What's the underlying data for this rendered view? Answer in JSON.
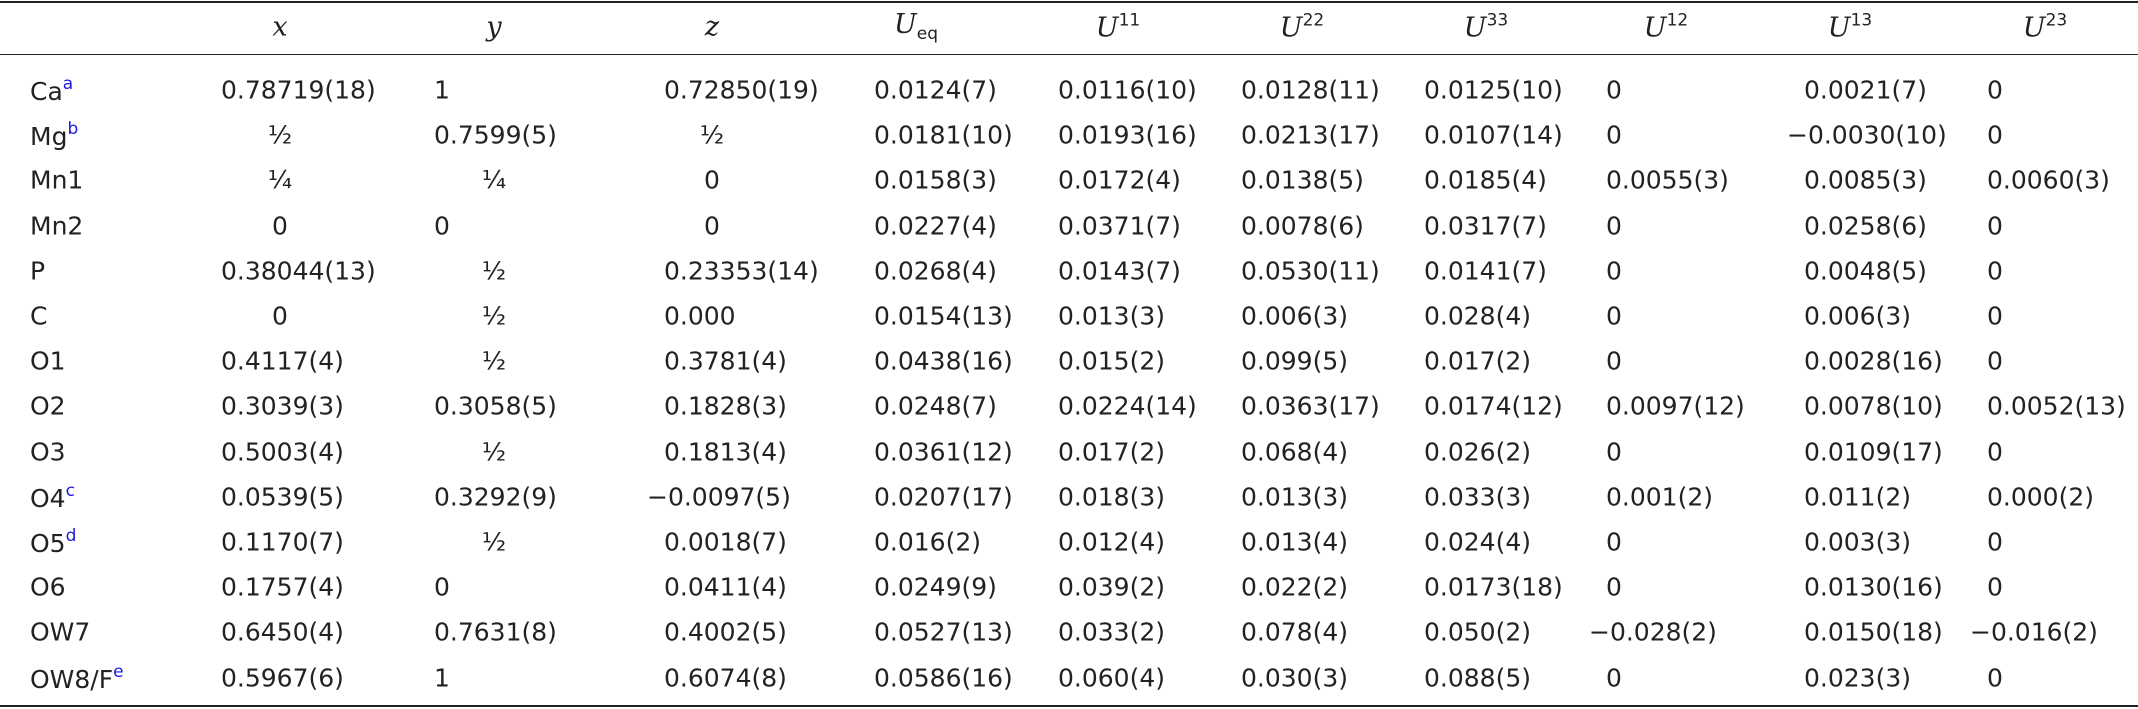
{
  "table": {
    "header": [
      {
        "symbol": "x"
      },
      {
        "symbol": "y"
      },
      {
        "symbol": "z"
      },
      {
        "symbol": "U",
        "sub": "eq"
      },
      {
        "symbol": "U",
        "sup": "11"
      },
      {
        "symbol": "U",
        "sup": "22"
      },
      {
        "symbol": "U",
        "sup": "33"
      },
      {
        "symbol": "U",
        "sup": "12"
      },
      {
        "symbol": "U",
        "sup": "13"
      },
      {
        "symbol": "U",
        "sup": "23"
      }
    ],
    "rows": [
      {
        "atom": "Ca",
        "note": "a",
        "cells": [
          "0.78719(18)",
          "1",
          "0.72850(19)",
          "0.0124(7)",
          "0.0116(10)",
          "0.0128(11)",
          "0.0125(10)",
          "0",
          "0.0021(7)",
          "0"
        ]
      },
      {
        "atom": "Mg",
        "note": "b",
        "cells": [
          "½",
          "0.7599(5)",
          "½",
          "0.0181(10)",
          "0.0193(16)",
          "0.0213(17)",
          "0.0107(14)",
          "0",
          "−0.0030(10)",
          "0"
        ]
      },
      {
        "atom": "Mn1",
        "cells": [
          "¼",
          "¼",
          "0",
          "0.0158(3)",
          "0.0172(4)",
          "0.0138(5)",
          "0.0185(4)",
          "0.0055(3)",
          "0.0085(3)",
          "0.0060(3)"
        ]
      },
      {
        "atom": "Mn2",
        "cells": [
          "0",
          "0",
          "0",
          "0.0227(4)",
          "0.0371(7)",
          "0.0078(6)",
          "0.0317(7)",
          "0",
          "0.0258(6)",
          "0"
        ]
      },
      {
        "atom": "P",
        "cells": [
          "0.38044(13)",
          "½",
          "0.23353(14)",
          "0.0268(4)",
          "0.0143(7)",
          "0.0530(11)",
          "0.0141(7)",
          "0",
          "0.0048(5)",
          "0"
        ]
      },
      {
        "atom": "C",
        "cells": [
          "0",
          "½",
          "0.000",
          "0.0154(13)",
          "0.013(3)",
          "0.006(3)",
          "0.028(4)",
          "0",
          "0.006(3)",
          "0"
        ]
      },
      {
        "atom": "O1",
        "cells": [
          "0.4117(4)",
          "½",
          "0.3781(4)",
          "0.0438(16)",
          "0.015(2)",
          "0.099(5)",
          "0.017(2)",
          "0",
          "0.0028(16)",
          "0"
        ]
      },
      {
        "atom": "O2",
        "cells": [
          "0.3039(3)",
          "0.3058(5)",
          "0.1828(3)",
          "0.0248(7)",
          "0.0224(14)",
          "0.0363(17)",
          "0.0174(12)",
          "0.0097(12)",
          "0.0078(10)",
          "0.0052(13)"
        ]
      },
      {
        "atom": "O3",
        "cells": [
          "0.5003(4)",
          "½",
          "0.1813(4)",
          "0.0361(12)",
          "0.017(2)",
          "0.068(4)",
          "0.026(2)",
          "0",
          "0.0109(17)",
          "0"
        ]
      },
      {
        "atom": "O4",
        "note": "c",
        "cells": [
          "0.0539(5)",
          "0.3292(9)",
          "−0.0097(5)",
          "0.0207(17)",
          "0.018(3)",
          "0.013(3)",
          "0.033(3)",
          "0.001(2)",
          "0.011(2)",
          "0.000(2)"
        ]
      },
      {
        "atom": "O5",
        "note": "d",
        "cells": [
          "0.1170(7)",
          "½",
          "0.0018(7)",
          "0.016(2)",
          "0.012(4)",
          "0.013(4)",
          "0.024(4)",
          "0",
          "0.003(3)",
          "0"
        ]
      },
      {
        "atom": "O6",
        "cells": [
          "0.1757(4)",
          "0",
          "0.0411(4)",
          "0.0249(9)",
          "0.039(2)",
          "0.022(2)",
          "0.0173(18)",
          "0",
          "0.0130(16)",
          "0"
        ]
      },
      {
        "atom": "OW7",
        "cells": [
          "0.6450(4)",
          "0.7631(8)",
          "0.4002(5)",
          "0.0527(13)",
          "0.033(2)",
          "0.078(4)",
          "0.050(2)",
          "−0.028(2)",
          "0.0150(18)",
          "−0.016(2)"
        ]
      },
      {
        "atom": "OW8/F",
        "note": "e",
        "cells": [
          "0.5967(6)",
          "1",
          "0.6074(8)",
          "0.0586(16)",
          "0.060(4)",
          "0.030(3)",
          "0.088(5)",
          "0",
          "0.023(3)",
          "0"
        ]
      }
    ]
  }
}
